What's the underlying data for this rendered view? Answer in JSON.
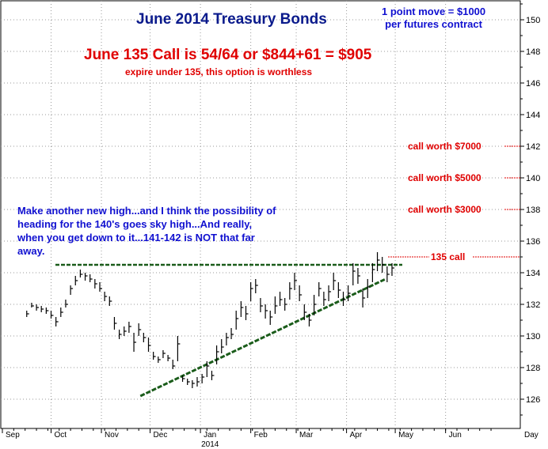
{
  "chart_data": {
    "type": "bar",
    "subtype": "ohlc-price-bars",
    "title": "June 2014 Treasury Bonds",
    "annotations": {
      "contract_note": [
        "1 point move = $1000",
        "per futures contract"
      ],
      "call_headline": "June 135 Call is 54/64 or $844+61 = $905",
      "call_sub": "expire under 135, this option is worthless",
      "commentary": "Make another new high...and I think the possibility of heading for the 140's goes sky high...And really, when you get down to it...141-142 is NOT that far away.",
      "callouts": [
        {
          "text": "call worth $7000",
          "price": 142
        },
        {
          "text": "call worth $5000",
          "price": 140
        },
        {
          "text": "call worth $3000",
          "price": 138
        },
        {
          "text": "135 call",
          "price": 135
        }
      ]
    },
    "y_axis": {
      "min": 125,
      "max": 151,
      "ticks": [
        126,
        128,
        130,
        132,
        134,
        136,
        138,
        140,
        142,
        144,
        146,
        148,
        150
      ],
      "position": "right"
    },
    "x_axis": {
      "labels": [
        "Sep",
        "Oct",
        "Nov",
        "Dec",
        "Jan",
        "Feb",
        "Mar",
        "Apr",
        "May",
        "Jun",
        "Day"
      ],
      "year_label": "2014"
    },
    "grid": true,
    "resistance_line": {
      "price": 134.5
    },
    "trend_line": {
      "start": {
        "date": "Nov 25 2013",
        "price": 126.2
      },
      "end": {
        "date": "Apr 25 2014",
        "price": 133.6
      }
    },
    "bars": [
      [
        "2013-09-16",
        131.6,
        131.2,
        131.4
      ],
      [
        "2013-09-19",
        132.1,
        131.8,
        131.9
      ],
      [
        "2013-09-22",
        132.0,
        131.6,
        131.8
      ],
      [
        "2013-09-25",
        131.9,
        131.5,
        131.7
      ],
      [
        "2013-09-28",
        131.8,
        131.4,
        131.6
      ],
      [
        "2013-10-01",
        131.6,
        131.1,
        131.3
      ],
      [
        "2013-10-04",
        131.2,
        130.6,
        130.9
      ],
      [
        "2013-10-07",
        131.8,
        131.2,
        131.5
      ],
      [
        "2013-10-10",
        132.3,
        131.8,
        132.0
      ],
      [
        "2013-10-13",
        133.2,
        132.6,
        133.0
      ],
      [
        "2013-10-16",
        133.8,
        133.2,
        133.5
      ],
      [
        "2013-10-19",
        134.2,
        133.7,
        133.9
      ],
      [
        "2013-10-22",
        134.0,
        133.5,
        133.8
      ],
      [
        "2013-10-25",
        133.9,
        133.4,
        133.6
      ],
      [
        "2013-10-28",
        133.6,
        133.0,
        133.3
      ],
      [
        "2013-10-31",
        133.4,
        132.8,
        133.0
      ],
      [
        "2013-11-03",
        132.8,
        132.2,
        132.5
      ],
      [
        "2013-11-06",
        132.5,
        131.9,
        132.2
      ],
      [
        "2013-11-09",
        131.2,
        130.4,
        130.8
      ],
      [
        "2013-11-12",
        130.4,
        129.8,
        130.1
      ],
      [
        "2013-11-15",
        130.6,
        130.0,
        130.3
      ],
      [
        "2013-11-18",
        130.9,
        130.2,
        130.6
      ],
      [
        "2013-11-21",
        130.2,
        129.0,
        129.6
      ],
      [
        "2013-11-24",
        130.8,
        130.0,
        130.4
      ],
      [
        "2013-11-27",
        130.2,
        129.6,
        129.9
      ],
      [
        "2013-11-30",
        129.9,
        129.0,
        129.4
      ],
      [
        "2013-12-03",
        129.0,
        128.5,
        128.7
      ],
      [
        "2013-12-06",
        128.7,
        128.3,
        128.5
      ],
      [
        "2013-12-09",
        129.1,
        128.6,
        128.9
      ],
      [
        "2013-12-12",
        128.8,
        128.4,
        128.6
      ],
      [
        "2013-12-15",
        128.5,
        127.9,
        128.1
      ],
      [
        "2013-12-18",
        130.0,
        128.4,
        129.5
      ],
      [
        "2013-12-21",
        127.5,
        127.1,
        127.3
      ],
      [
        "2013-12-24",
        127.3,
        126.9,
        127.1
      ],
      [
        "2013-12-27",
        127.2,
        126.7,
        127.0
      ],
      [
        "2013-12-30",
        127.4,
        126.8,
        127.1
      ],
      [
        "2014-01-02",
        127.6,
        127.0,
        127.4
      ],
      [
        "2014-01-05",
        128.4,
        127.4,
        128.1
      ],
      [
        "2014-01-08",
        127.8,
        127.2,
        127.5
      ],
      [
        "2014-01-11",
        129.4,
        128.2,
        129.0
      ],
      [
        "2014-01-14",
        129.8,
        128.9,
        129.3
      ],
      [
        "2014-01-17",
        130.2,
        129.4,
        129.9
      ],
      [
        "2014-01-20",
        130.5,
        129.8,
        130.1
      ],
      [
        "2014-01-23",
        131.6,
        130.4,
        131.1
      ],
      [
        "2014-01-26",
        132.2,
        131.2,
        131.8
      ],
      [
        "2014-01-29",
        131.9,
        131.0,
        131.4
      ],
      [
        "2014-02-01",
        133.4,
        132.2,
        133.0
      ],
      [
        "2014-02-04",
        133.6,
        132.7,
        133.2
      ],
      [
        "2014-02-07",
        132.4,
        131.5,
        131.9
      ],
      [
        "2014-02-10",
        132.0,
        131.1,
        131.6
      ],
      [
        "2014-02-13",
        131.6,
        130.7,
        131.2
      ],
      [
        "2014-02-16",
        132.5,
        131.4,
        131.9
      ],
      [
        "2014-02-19",
        132.8,
        131.9,
        132.3
      ],
      [
        "2014-02-22",
        132.4,
        131.6,
        132.0
      ],
      [
        "2014-02-25",
        133.4,
        132.3,
        133.0
      ],
      [
        "2014-02-28",
        134.0,
        132.9,
        133.5
      ],
      [
        "2014-03-03",
        133.2,
        132.2,
        132.6
      ],
      [
        "2014-03-06",
        132.0,
        131.0,
        131.5
      ],
      [
        "2014-03-09",
        131.4,
        130.6,
        131.0
      ],
      [
        "2014-03-12",
        132.6,
        131.3,
        132.0
      ],
      [
        "2014-03-15",
        133.4,
        132.5,
        133.0
      ],
      [
        "2014-03-18",
        132.8,
        131.9,
        132.3
      ],
      [
        "2014-03-21",
        133.2,
        132.2,
        132.8
      ],
      [
        "2014-03-24",
        134.0,
        132.9,
        133.5
      ],
      [
        "2014-03-27",
        133.4,
        132.4,
        132.9
      ],
      [
        "2014-03-30",
        132.8,
        131.9,
        132.3
      ],
      [
        "2014-04-02",
        133.2,
        132.2,
        132.7
      ],
      [
        "2014-04-05",
        134.6,
        133.2,
        134.1
      ],
      [
        "2014-04-08",
        134.3,
        133.3,
        133.8
      ],
      [
        "2014-04-11",
        133.0,
        131.8,
        132.4
      ],
      [
        "2014-04-14",
        133.6,
        132.4,
        133.1
      ],
      [
        "2014-04-17",
        134.6,
        133.4,
        134.2
      ],
      [
        "2014-04-20",
        135.3,
        134.1,
        134.8
      ],
      [
        "2014-04-23",
        135.0,
        134.0,
        134.5
      ],
      [
        "2014-04-26",
        134.4,
        133.4,
        133.9
      ],
      [
        "2014-04-29",
        134.6,
        133.8,
        134.3
      ]
    ]
  }
}
